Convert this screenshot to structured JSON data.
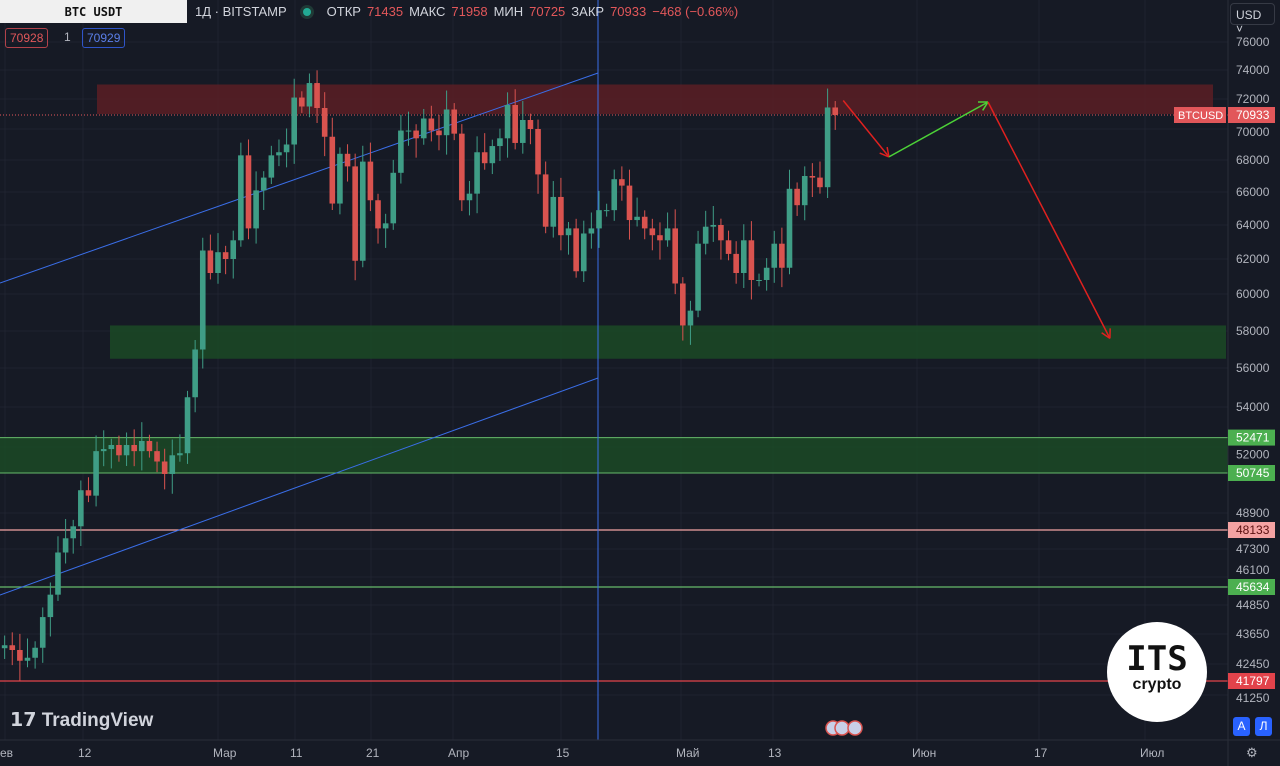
{
  "header": {
    "symbol_box": "BTC USDT",
    "interval_exchange": "1Д · BITSTAMP",
    "open_label": "ОТКР",
    "open": "71435",
    "high_label": "МАКС",
    "high": "71958",
    "low_label": "МИН",
    "low": "70725",
    "close_label": "ЗАКР",
    "close": "70933",
    "change": "−468 (−0.66%)",
    "sell_price": "70928",
    "spread": "1",
    "buy_price": "70929"
  },
  "currency": "USD",
  "branding": {
    "tradingview": "TradingView",
    "logo_line1": "ITS",
    "logo_line2": "crypto"
  },
  "buttons": {
    "auto": "A",
    "log": "Л"
  },
  "colors": {
    "up": "#3f9d86",
    "down": "#d9534f",
    "bg": "#161a25"
  },
  "chart_data": {
    "type": "candlestick",
    "title": "BTC USDT 1Д BITSTAMP",
    "start_date": "2024-02-01",
    "closes": [
      43082,
      43200,
      43010,
      42580,
      42700,
      43100,
      44350,
      45300,
      47150,
      47770,
      48300,
      49950,
      49700,
      51800,
      51900,
      52100,
      51600,
      52100,
      51800,
      52300,
      51800,
      51300,
      50700,
      51600,
      51700,
      54500,
      57000,
      62500,
      61200,
      62400,
      62000,
      63100,
      68300,
      63800,
      66100,
      66900,
      68300,
      68500,
      69000,
      72100,
      71500,
      73100,
      71400,
      69500,
      65300,
      68400,
      67600,
      61900,
      67900,
      65500,
      63800,
      64100,
      67200,
      69900,
      69900,
      69400,
      70700,
      69900,
      69600,
      71300,
      69700,
      65500,
      65900,
      68500,
      67800,
      68900,
      69400,
      71600,
      69100,
      70600,
      70000,
      67100,
      63900,
      65700,
      63400,
      63800,
      61300,
      63500,
      63800,
      64900,
      64900,
      66800,
      66400,
      64300,
      64500,
      63800,
      63400,
      63100,
      63800,
      60600,
      58300,
      59100,
      62900,
      63900,
      64000,
      63100,
      62300,
      61200,
      63100,
      60800,
      60800,
      61500,
      62900,
      61500,
      66200,
      65200,
      67000,
      66900,
      66300,
      71435,
      70933
    ],
    "y_ticks": [
      "76000",
      "74000",
      "72000",
      "70000",
      "68000",
      "66000",
      "64000",
      "62000",
      "60000",
      "58000",
      "56000",
      "54000",
      "52000",
      "48900",
      "47300",
      "46100",
      "44850",
      "43650",
      "42450",
      "41250"
    ],
    "x_ticks": [
      "ев",
      "12",
      "Мар",
      "11",
      "21",
      "Апр",
      "15",
      "Май",
      "13",
      "Июн",
      "17",
      "Июл"
    ],
    "price_labels": [
      {
        "text": "70933",
        "tag": "BTCUSD",
        "color": "#e2575a"
      },
      {
        "text": "52471",
        "color": "#4caf50"
      },
      {
        "text": "50745",
        "color": "#4caf50"
      },
      {
        "text": "48133",
        "color": "#f4a3a3"
      },
      {
        "text": "45634",
        "color": "#4caf50"
      },
      {
        "text": "41797",
        "color": "#e2434b"
      }
    ],
    "zones": [
      {
        "name": "resistance",
        "from": 71000,
        "to": 73000,
        "color": "#5a1e24"
      },
      {
        "name": "support-1",
        "from": 56500,
        "to": 58300,
        "color": "#1b4a26"
      },
      {
        "name": "support-2",
        "from": 50745,
        "to": 52471,
        "color": "#1b4a26"
      }
    ],
    "levels": [
      {
        "price": 48133,
        "color": "#f4a3a3"
      },
      {
        "price": 45634,
        "color": "#66bb6a"
      },
      {
        "price": 41797,
        "color": "#e2434b"
      }
    ],
    "forecast_path": [
      {
        "date_index": 110,
        "price": 71900
      },
      {
        "date_index": 116,
        "price": 68200
      },
      {
        "date_index": 129,
        "price": 71800
      },
      {
        "date_index": 145,
        "price": 57600
      }
    ]
  }
}
